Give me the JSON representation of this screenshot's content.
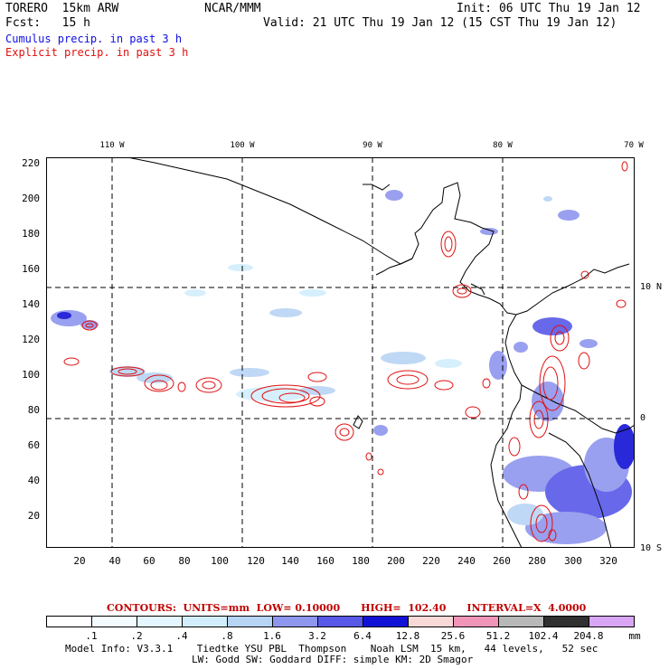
{
  "header": {
    "model_label": "TORERO  15km ARW",
    "center": "NCAR/MMM",
    "init": "Init: 06 UTC Thu 19 Jan 12",
    "fcst": "Fcst:   15 h",
    "valid": "Valid: 21 UTC Thu 19 Jan 12 (15 CST Thu 19 Jan 12)"
  },
  "legend": {
    "cumulus": "Cumulus precip. in past 3 h",
    "explicit": "Explicit precip. in past 3 h",
    "cumulus_color": "#1010e0",
    "explicit_color": "#e01010"
  },
  "map": {
    "lon_labels": [
      "110 W",
      "100 W",
      "90 W",
      "80 W",
      "70 W"
    ],
    "lat_labels": [
      "10 N",
      "0",
      "10 S"
    ],
    "y_ticks": [
      "220",
      "200",
      "180",
      "160",
      "140",
      "120",
      "100",
      "80",
      "60",
      "40",
      "20"
    ],
    "x_ticks": [
      "20",
      "40",
      "60",
      "80",
      "100",
      "120",
      "140",
      "160",
      "180",
      "200",
      "220",
      "240",
      "260",
      "280",
      "300",
      "320"
    ]
  },
  "contours": {
    "caption": "CONTOURS:  UNITS=mm  LOW= 0.10000      HIGH=  102.40      INTERVAL=X  4.0000"
  },
  "colorbar": {
    "labels": [
      ".1",
      ".2",
      ".4",
      ".8",
      "1.6",
      "3.2",
      "6.4",
      "12.8",
      "25.6",
      "51.2",
      "102.4",
      "204.8",
      "mm"
    ],
    "colors": [
      "#ffffff",
      "#f4fbff",
      "#e4f6ff",
      "#d2eefc",
      "#b7d4f5",
      "#8f96ee",
      "#5858e8",
      "#1212d6",
      "#f9d8d8",
      "#f094b8",
      "#b8b8b8",
      "#303030",
      "#d8a6f4"
    ]
  },
  "footer": {
    "line1": "Model Info: V3.3.1    Tiedtke YSU PBL  Thompson    Noah LSM  15 km,   44 levels,   52 sec",
    "line2": "LW: Godd SW: Goddard DIFF: simple KM: 2D Smagor"
  }
}
